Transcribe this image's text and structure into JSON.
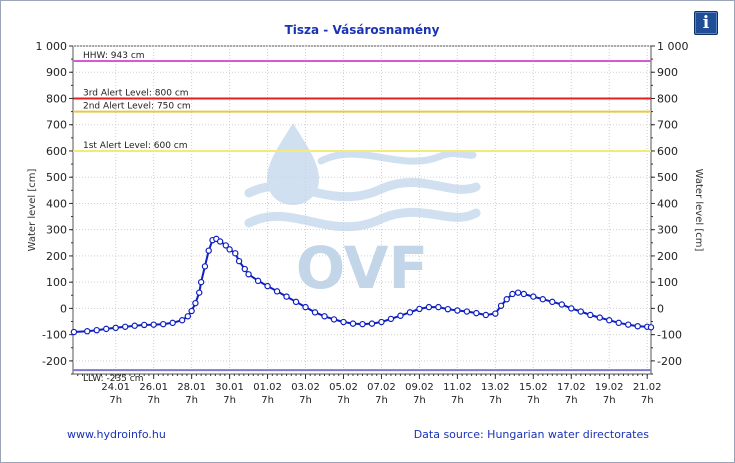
{
  "info_button": {
    "icon": "info-icon",
    "glyph": "i"
  },
  "footer": {
    "left_text": "www.hydroinfo.hu",
    "right_text": "Data source: Hungarian water directorates"
  },
  "watermark": {
    "text": "OVF",
    "icon": "water-drop-waves-logo"
  },
  "chart_data": {
    "type": "line",
    "title": "Tisza - Vásárosnamény",
    "ylabel": "Water level [cm]",
    "ylabel_right": "Water level [cm]",
    "ylim": [
      -250,
      1000
    ],
    "y_ticks": [
      -200,
      -100,
      0,
      100,
      200,
      300,
      400,
      500,
      600,
      700,
      800,
      900,
      1000
    ],
    "y_tick_labels": [
      "-200",
      "-100",
      "0",
      "100",
      "200",
      "300",
      "400",
      "500",
      "600",
      "700",
      "800",
      "900",
      "1 000"
    ],
    "xlim": [
      "22.01 7h",
      "21.02 12h"
    ],
    "x_ticks": [
      {
        "day": 2,
        "label": "24.01"
      },
      {
        "day": 4,
        "label": "26.01"
      },
      {
        "day": 6,
        "label": "28.01"
      },
      {
        "day": 8,
        "label": "30.01"
      },
      {
        "day": 10,
        "label": "01.02"
      },
      {
        "day": 12,
        "label": "03.02"
      },
      {
        "day": 14,
        "label": "05.02"
      },
      {
        "day": 16,
        "label": "07.02"
      },
      {
        "day": 18,
        "label": "09.02"
      },
      {
        "day": 20,
        "label": "11.02"
      },
      {
        "day": 22,
        "label": "13.02"
      },
      {
        "day": 24,
        "label": "15.02"
      },
      {
        "day": 26,
        "label": "17.02"
      },
      {
        "day": 28,
        "label": "19.02"
      },
      {
        "day": 30,
        "label": "21.02"
      }
    ],
    "x_tick_sublabel": "7h",
    "grid": true,
    "colors": {
      "series": "#1020c0",
      "marker_fill": "#ffffff",
      "hhw": "#d35ad3",
      "alert3": "#e02020",
      "alert2": "#e8c84a",
      "alert1": "#f2ea7a",
      "llw": "#7a7ad0",
      "grid": "#d0d0d0"
    },
    "reference_lines": [
      {
        "name": "HHW",
        "label": "HHW: 943 cm",
        "value": 943,
        "color": "#d35ad3"
      },
      {
        "name": "3rd Alert Level",
        "label": "3rd Alert Level: 800 cm",
        "value": 800,
        "color": "#e02020"
      },
      {
        "name": "2nd Alert Level",
        "label": "2nd Alert Level: 750 cm",
        "value": 750,
        "color": "#e8c84a"
      },
      {
        "name": "1st Alert Level",
        "label": "1st Alert Level: 600 cm",
        "value": 600,
        "color": "#f2ea7a"
      },
      {
        "name": "LLW",
        "label": "LLW: -235 cm",
        "value": -235,
        "color": "#7a7ad0"
      }
    ],
    "series": [
      {
        "points": [
          [
            -0.2,
            -90
          ],
          [
            0.5,
            -87
          ],
          [
            1.0,
            -83
          ],
          [
            1.5,
            -78
          ],
          [
            2.0,
            -74
          ],
          [
            2.5,
            -70
          ],
          [
            3.0,
            -66
          ],
          [
            3.5,
            -63
          ],
          [
            4.0,
            -62
          ],
          [
            4.5,
            -60
          ],
          [
            5.0,
            -55
          ],
          [
            5.5,
            -45
          ],
          [
            5.8,
            -30
          ],
          [
            6.0,
            -10
          ],
          [
            6.2,
            20
          ],
          [
            6.4,
            60
          ],
          [
            6.5,
            100
          ],
          [
            6.7,
            160
          ],
          [
            6.9,
            220
          ],
          [
            7.1,
            260
          ],
          [
            7.3,
            265
          ],
          [
            7.5,
            255
          ],
          [
            7.8,
            240
          ],
          [
            8.0,
            225
          ],
          [
            8.3,
            210
          ],
          [
            8.5,
            180
          ],
          [
            8.8,
            150
          ],
          [
            9.0,
            130
          ],
          [
            9.5,
            105
          ],
          [
            10.0,
            85
          ],
          [
            10.5,
            65
          ],
          [
            11.0,
            45
          ],
          [
            11.5,
            25
          ],
          [
            12.0,
            5
          ],
          [
            12.5,
            -15
          ],
          [
            13.0,
            -30
          ],
          [
            13.5,
            -42
          ],
          [
            14.0,
            -52
          ],
          [
            14.5,
            -58
          ],
          [
            15.0,
            -60
          ],
          [
            15.5,
            -58
          ],
          [
            16.0,
            -52
          ],
          [
            16.5,
            -40
          ],
          [
            17.0,
            -28
          ],
          [
            17.5,
            -15
          ],
          [
            18.0,
            -2
          ],
          [
            18.5,
            5
          ],
          [
            19.0,
            5
          ],
          [
            19.5,
            -3
          ],
          [
            20.0,
            -8
          ],
          [
            20.5,
            -12
          ],
          [
            21.0,
            -18
          ],
          [
            21.5,
            -25
          ],
          [
            22.0,
            -20
          ],
          [
            22.3,
            10
          ],
          [
            22.6,
            35
          ],
          [
            22.9,
            55
          ],
          [
            23.2,
            60
          ],
          [
            23.5,
            55
          ],
          [
            24.0,
            45
          ],
          [
            24.5,
            35
          ],
          [
            25.0,
            25
          ],
          [
            25.5,
            15
          ],
          [
            26.0,
            0
          ],
          [
            26.5,
            -12
          ],
          [
            27.0,
            -25
          ],
          [
            27.5,
            -35
          ],
          [
            28.0,
            -45
          ],
          [
            28.5,
            -55
          ],
          [
            29.0,
            -62
          ],
          [
            29.5,
            -68
          ],
          [
            30.0,
            -70
          ],
          [
            30.2,
            -72
          ]
        ]
      }
    ]
  }
}
